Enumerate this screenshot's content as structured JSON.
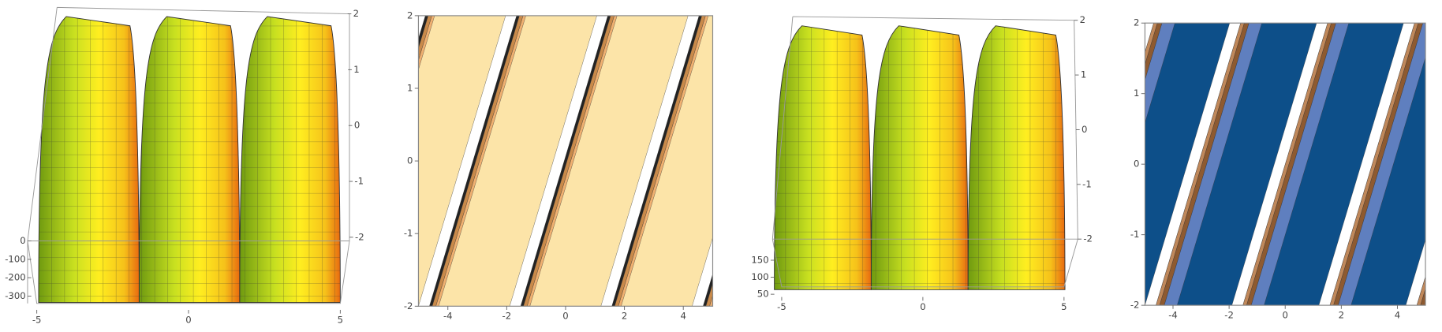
{
  "chart_data": [
    {
      "type": "surface3d",
      "xlim": [
        -5,
        5
      ],
      "xticks": [
        -5,
        0,
        5
      ],
      "ylim": [
        -2,
        2
      ],
      "yticks": [
        2,
        1,
        0,
        -1,
        -2
      ],
      "zlim": [
        -300,
        0
      ],
      "zticks": [
        0,
        -100,
        -200,
        -300
      ]
    },
    {
      "type": "contour",
      "color": "#fce4a8",
      "xlim": [
        -5,
        5
      ],
      "xticks": [
        -4,
        -2,
        0,
        2,
        4
      ],
      "ylim": [
        -2,
        2
      ],
      "yticks": [
        2,
        1,
        0,
        -1,
        -2
      ]
    },
    {
      "type": "surface3d",
      "xlim": [
        -5,
        5
      ],
      "xticks": [
        -5,
        0,
        5
      ],
      "ylim": [
        -2,
        2
      ],
      "yticks": [
        2,
        1,
        0,
        -1,
        -2
      ],
      "zlim": [
        50,
        150
      ],
      "zticks": [
        150,
        100,
        50
      ]
    },
    {
      "type": "contour",
      "color": "#0d4f89",
      "xlim": [
        -5,
        5
      ],
      "xticks": [
        -4,
        -2,
        0,
        2,
        4
      ],
      "ylim": [
        -2,
        2
      ],
      "yticks": [
        2,
        1,
        0,
        -1,
        -2
      ]
    }
  ]
}
